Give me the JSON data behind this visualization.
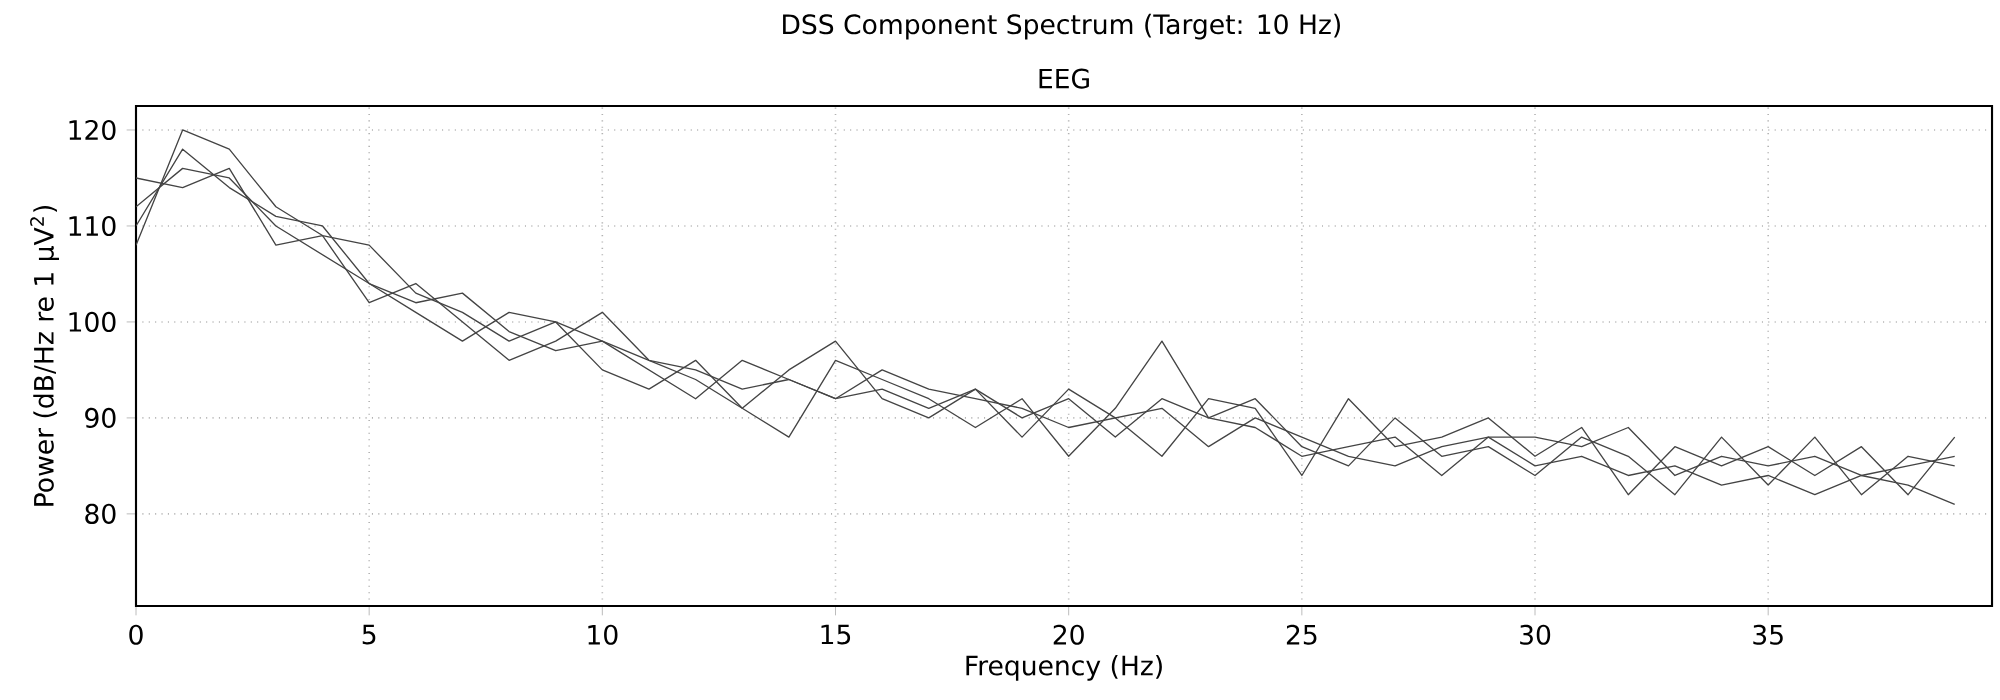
{
  "chart_data": {
    "type": "line",
    "title": "DSS Component Spectrum (Target: 10 Hz)",
    "subtitle": "EEG",
    "xlabel": "Frequency (Hz)",
    "ylabel": "Power (dB/Hz re 1 µV$^{2}$)",
    "x": [
      0,
      1,
      2,
      3,
      4,
      5,
      6,
      7,
      8,
      9,
      10,
      11,
      12,
      13,
      14,
      15,
      16,
      17,
      18,
      19,
      20,
      21,
      22,
      23,
      24,
      25,
      26,
      27,
      28,
      29,
      30,
      31,
      32,
      33,
      34,
      35,
      36,
      37,
      38,
      39
    ],
    "series": [
      {
        "color": "#444444",
        "values": [
          108,
          120,
          118,
          112,
          109,
          108,
          103,
          101,
          98,
          100,
          98,
          96,
          95,
          93,
          94,
          92,
          95,
          93,
          92,
          91,
          89,
          90,
          91,
          87,
          90,
          88,
          86,
          85,
          87,
          88,
          85,
          86,
          84,
          85,
          83,
          84,
          82,
          84,
          85,
          86
        ]
      },
      {
        "color": "#444444",
        "values": [
          112,
          116,
          115,
          110,
          107,
          104,
          102,
          103,
          99,
          97,
          98,
          95,
          92,
          96,
          94,
          92,
          93,
          91,
          93,
          90,
          92,
          88,
          92,
          90,
          89,
          86,
          87,
          88,
          84,
          88,
          88,
          87,
          89,
          84,
          86,
          85,
          86,
          84,
          83,
          81
        ]
      },
      {
        "color": "#444444",
        "values": [
          110,
          118,
          114,
          111,
          110,
          104,
          101,
          98,
          101,
          100,
          95,
          93,
          96,
          91,
          88,
          96,
          94,
          92,
          89,
          92,
          86,
          91,
          98,
          90,
          92,
          87,
          85,
          90,
          86,
          87,
          84,
          88,
          86,
          82,
          88,
          83,
          88,
          82,
          86,
          85
        ]
      },
      {
        "color": "#444444",
        "values": [
          115,
          114,
          116,
          108,
          109,
          102,
          104,
          100,
          96,
          98,
          101,
          96,
          94,
          91,
          95,
          98,
          92,
          90,
          93,
          88,
          93,
          90,
          86,
          92,
          91,
          84,
          92,
          87,
          88,
          90,
          86,
          89,
          82,
          87,
          85,
          87,
          84,
          87,
          82,
          88
        ]
      }
    ],
    "xlim": [
      0,
      39.8
    ],
    "ylim": [
      70.4,
      122.5
    ],
    "xticks": [
      0,
      5,
      10,
      15,
      20,
      25,
      30,
      35
    ],
    "yticks": [
      80,
      90,
      100,
      110,
      120
    ],
    "grid": true
  }
}
